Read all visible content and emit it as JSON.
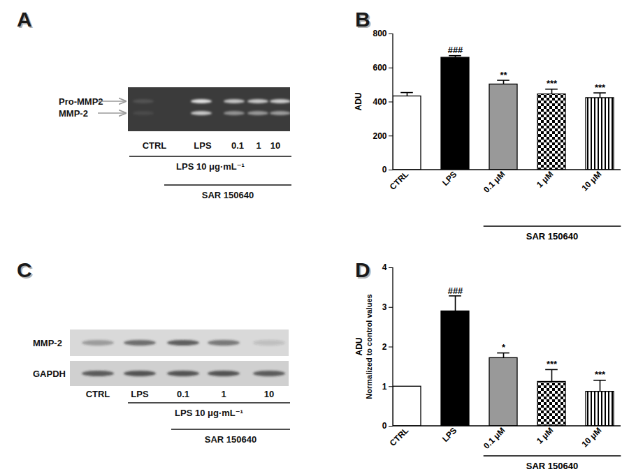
{
  "chart_data": [
    {
      "type": "gel",
      "panel": "A",
      "rows": [
        "Pro-MMP2",
        "MMP-2"
      ],
      "lanes": [
        "CTRL",
        "LPS",
        "0.1",
        "1",
        "10"
      ],
      "band_intensity": [
        [
          0.12,
          0.85,
          0.7,
          0.72,
          0.75
        ],
        [
          0.08,
          0.72,
          0.45,
          0.48,
          0.5
        ]
      ],
      "treatment": {
        "label": "LPS 10 μg·mL⁻¹",
        "lanes": [
          "LPS",
          "0.1",
          "1",
          "10"
        ]
      },
      "group": {
        "label": "SAR 150640",
        "lanes": [
          "0.1",
          "1",
          "10"
        ]
      }
    },
    {
      "type": "bar",
      "panel": "B",
      "categories": [
        "CTRL",
        "LPS",
        "0.1 μM",
        "1 μM",
        "10 μM"
      ],
      "values": [
        433,
        660,
        503,
        445,
        423
      ],
      "errors": [
        20,
        10,
        22,
        28,
        28
      ],
      "colors": [
        "#ffffff",
        "#000000",
        "#999999",
        "#000000",
        "#000000"
      ],
      "annotations": [
        null,
        "###",
        "**",
        "***",
        "***"
      ],
      "ylabel": "ADU",
      "ylim": [
        0,
        800
      ],
      "yticks": [
        0,
        200,
        400,
        600,
        800
      ],
      "group": {
        "label": "SAR 150640",
        "categories": [
          "0.1 μM",
          "1 μM",
          "10 μM"
        ]
      }
    },
    {
      "type": "blot",
      "panel": "C",
      "rows": [
        "MMP-2",
        "GAPDH"
      ],
      "lanes": [
        "CTRL",
        "LPS",
        "0.1",
        "1",
        "10"
      ],
      "band_intensity": [
        [
          0.35,
          0.6,
          0.7,
          0.55,
          0.15
        ],
        [
          0.7,
          0.72,
          0.72,
          0.72,
          0.68
        ]
      ],
      "treatment": {
        "label": "LPS 10 μg·mL⁻¹",
        "lanes": [
          "LPS",
          "0.1",
          "1",
          "10"
        ]
      },
      "group": {
        "label": "SAR 150640",
        "lanes": [
          "0.1",
          "1",
          "10"
        ]
      }
    },
    {
      "type": "bar",
      "panel": "D",
      "categories": [
        "CTRL",
        "LPS",
        "0.1 μM",
        "1 μM",
        "10 μM"
      ],
      "values": [
        1,
        2.9,
        1.72,
        1.12,
        0.87
      ],
      "errors": [
        0,
        0.38,
        0.12,
        0.3,
        0.28
      ],
      "colors": [
        "#ffffff",
        "#000000",
        "#999999",
        "#000000",
        "#000000"
      ],
      "annotations": [
        null,
        "###",
        "*",
        "***",
        "***"
      ],
      "ylabel": [
        "ADU",
        "Normalized to control values"
      ],
      "ylim": [
        0,
        4
      ],
      "yticks": [
        0,
        1,
        2,
        3,
        4
      ],
      "group": {
        "label": "SAR 150640",
        "categories": [
          "0.1 μM",
          "1 μM",
          "10 μM"
        ]
      }
    }
  ]
}
